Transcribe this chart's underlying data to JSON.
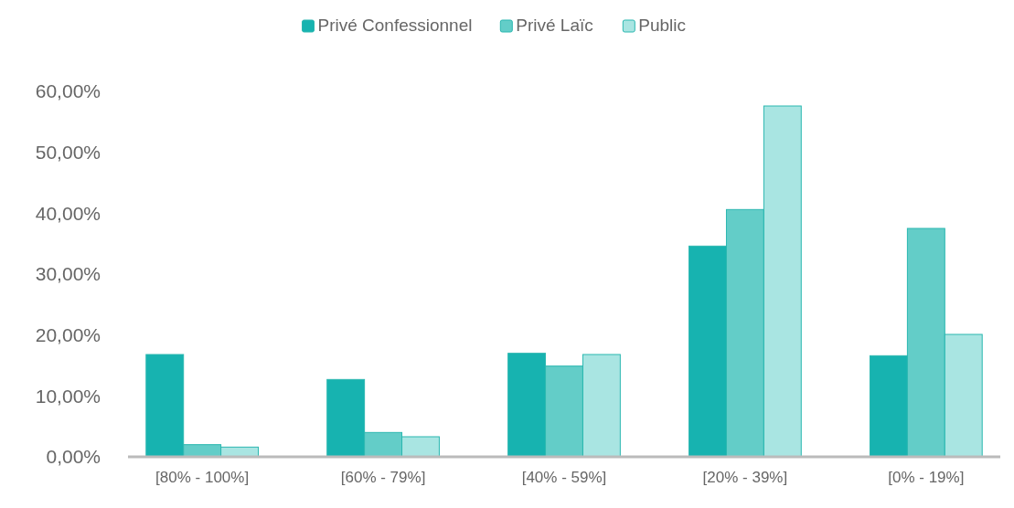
{
  "chart_data": {
    "type": "bar",
    "categories": [
      "[80% - 100%]",
      "[60% - 79%]",
      "[40% - 59%]",
      "[20% - 39%]",
      "[0% - 19%]"
    ],
    "series": [
      {
        "name": "Privé Confessionnel",
        "color": "#17b3b0",
        "values": [
          16.8,
          12.7,
          17.0,
          34.6,
          16.6
        ]
      },
      {
        "name": "Privé Laïc",
        "color": "#63cdc8",
        "values": [
          2.0,
          4.0,
          14.9,
          40.6,
          37.5
        ]
      },
      {
        "name": "Public",
        "color": "#a9e5e2",
        "values": [
          1.6,
          3.3,
          16.8,
          57.6,
          20.1
        ]
      }
    ],
    "ylim": [
      0,
      60
    ],
    "yticks": [
      {
        "value": 0,
        "label": "0,00%"
      },
      {
        "value": 10,
        "label": "10,00%"
      },
      {
        "value": 20,
        "label": "20,00%"
      },
      {
        "value": 30,
        "label": "30,00%"
      },
      {
        "value": 40,
        "label": "40,00%"
      },
      {
        "value": 50,
        "label": "50,00%"
      },
      {
        "value": 60,
        "label": "60,00%"
      }
    ],
    "grid": false,
    "legend": "top"
  }
}
